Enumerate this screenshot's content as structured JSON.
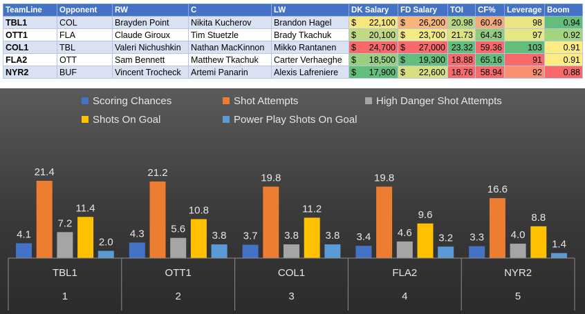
{
  "table": {
    "headers": [
      "TeamLine",
      "Opponent",
      "RW",
      "C",
      "LW",
      "DK Salary",
      "FD Salary",
      "TOI",
      "CF%",
      "Leverage",
      "Boom"
    ],
    "rows": [
      {
        "teamline": "TBL1",
        "opponent": "COL",
        "rw": "Brayden Point",
        "c": "Nikita Kucherov",
        "lw": "Brandon Hagel",
        "dk": "22,100",
        "fd": "26,200",
        "toi": "20.98",
        "cf": "60.49",
        "leverage": "98",
        "boom": "0.94"
      },
      {
        "teamline": "OTT1",
        "opponent": "FLA",
        "rw": "Claude Giroux",
        "c": "Tim Stuetzle",
        "lw": "Brady Tkachuk",
        "dk": "20,100",
        "fd": "23,700",
        "toi": "21.73",
        "cf": "64.43",
        "leverage": "97",
        "boom": "0.92"
      },
      {
        "teamline": "COL1",
        "opponent": "TBL",
        "rw": "Valeri Nichushkin",
        "c": "Nathan MacKinnon",
        "lw": "Mikko Rantanen",
        "dk": "24,700",
        "fd": "27,000",
        "toi": "23.32",
        "cf": "59.36",
        "leverage": "103",
        "boom": "0.91"
      },
      {
        "teamline": "FLA2",
        "opponent": "OTT",
        "rw": "Sam Bennett",
        "c": "Matthew Tkachuk",
        "lw": "Carter Verhaeghe",
        "dk": "18,500",
        "fd": "19,300",
        "toi": "18.88",
        "cf": "65.16",
        "leverage": "91",
        "boom": "0.91"
      },
      {
        "teamline": "NYR2",
        "opponent": "BUF",
        "rw": "Vincent Trocheck",
        "c": "Artemi Panarin",
        "lw": "Alexis Lafreniere",
        "dk": "17,900",
        "fd": "22,600",
        "toi": "18.76",
        "cf": "58.94",
        "leverage": "92",
        "boom": "0.88"
      }
    ],
    "currency_symbol": "$",
    "cell_colors": {
      "dk": [
        "#f7e57e",
        "#c2d983",
        "#f8696b",
        "#99cf7f",
        "#63be7b"
      ],
      "fd": [
        "#f8b47a",
        "#f5ea84",
        "#f8696b",
        "#63be7b",
        "#d8df81"
      ],
      "toi": [
        "#b7d680",
        "#dde282",
        "#63be7b",
        "#f8696b",
        "#f8696b"
      ],
      "cf": [
        "#f0ab78",
        "#8fcc7e",
        "#f8696b",
        "#63be7b",
        "#f8696b"
      ],
      "leverage": [
        "#e9e583",
        "#e6e883",
        "#63be7b",
        "#f8696b",
        "#f88f71"
      ],
      "boom": [
        "#63be7b",
        "#a5d47f",
        "#ffeb84",
        "#ffeb84",
        "#f8696b"
      ]
    }
  },
  "chart_data": {
    "type": "bar",
    "categories": [
      "TBL1",
      "OTT1",
      "COL1",
      "FLA2",
      "NYR2"
    ],
    "category_numbers": [
      "1",
      "2",
      "3",
      "4",
      "5"
    ],
    "series": [
      {
        "name": "Scoring Chances",
        "color": "#4472c4",
        "values": [
          4.1,
          4.3,
          3.7,
          3.4,
          3.3
        ]
      },
      {
        "name": "Shot Attempts",
        "color": "#ed7d31",
        "values": [
          21.4,
          21.2,
          19.8,
          19.8,
          16.6
        ]
      },
      {
        "name": "High Danger Shot Attempts",
        "color": "#a5a5a5",
        "values": [
          7.2,
          5.6,
          3.8,
          4.6,
          4.0
        ]
      },
      {
        "name": "Shots On Goal",
        "color": "#ffc000",
        "values": [
          11.4,
          10.8,
          11.2,
          9.6,
          8.8
        ]
      },
      {
        "name": "Power Play Shots On Goal",
        "color": "#5b9bd5",
        "values": [
          2.0,
          3.8,
          3.8,
          3.2,
          1.4
        ]
      }
    ],
    "value_labels": [
      [
        "4.1",
        "4.3",
        "3.7",
        "3.4",
        "3.3"
      ],
      [
        "21.4",
        "21.2",
        "19.8",
        "19.8",
        "16.6"
      ],
      [
        "7.2",
        "5.6",
        "3.8",
        "4.6",
        "4.0"
      ],
      [
        "11.4",
        "10.8",
        "11.2",
        "9.6",
        "8.8"
      ],
      [
        "2.0",
        "3.8",
        "3.8",
        "3.2",
        "1.4"
      ]
    ],
    "ylim": [
      0,
      24
    ],
    "grid": false,
    "legend_position": "top",
    "background": "dark-gradient"
  }
}
